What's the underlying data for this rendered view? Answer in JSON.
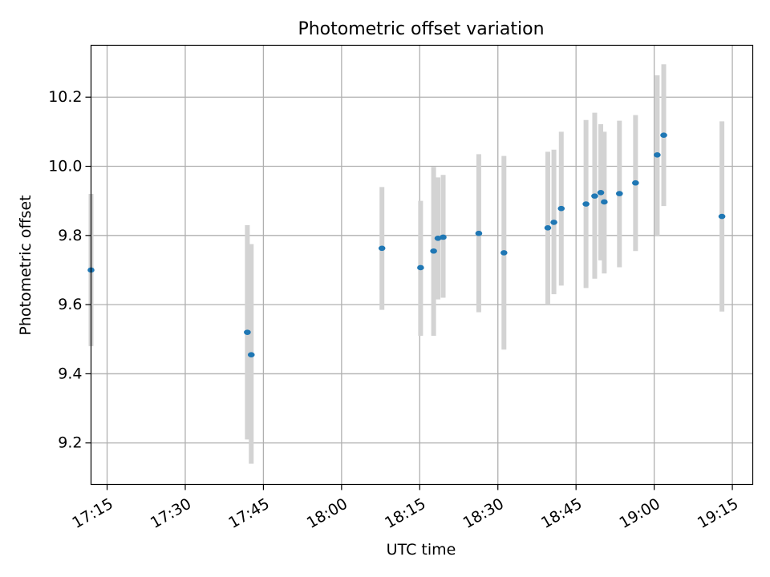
{
  "chart_data": {
    "type": "scatter",
    "title": "Photometric offset variation",
    "xlabel": "UTC time",
    "ylabel": "Photometric offset",
    "x_tick_labels": [
      "17:15",
      "17:30",
      "17:45",
      "18:00",
      "18:15",
      "18:30",
      "18:45",
      "19:00",
      "19:15"
    ],
    "y_tick_labels": [
      "9.2",
      "9.4",
      "9.6",
      "9.8",
      "10.0",
      "10.2"
    ],
    "x_ticks": [
      "17:15",
      "17:30",
      "17:45",
      "18:00",
      "18:15",
      "18:30",
      "18:45",
      "19:00",
      "19:15"
    ],
    "y_ticks": [
      9.2,
      9.4,
      9.6,
      9.8,
      10.0,
      10.2
    ],
    "xlim": [
      "17:11:55",
      "19:18:55"
    ],
    "ylim": [
      9.08,
      10.35
    ],
    "grid": true,
    "legend": "none",
    "marker_color": "#1f77b4",
    "errorbar_color": "#d3d3d3",
    "points": [
      {
        "x": "17:11:55",
        "y": 9.7,
        "ylow": 9.48,
        "yhigh": 9.92
      },
      {
        "x": "17:41:55",
        "y": 9.52,
        "ylow": 9.21,
        "yhigh": 9.83
      },
      {
        "x": "17:42:40",
        "y": 9.455,
        "ylow": 9.14,
        "yhigh": 9.775
      },
      {
        "x": "18:07:45",
        "y": 9.763,
        "ylow": 9.585,
        "yhigh": 9.94
      },
      {
        "x": "18:15:10",
        "y": 9.707,
        "ylow": 9.51,
        "yhigh": 9.9
      },
      {
        "x": "18:17:40",
        "y": 9.755,
        "ylow": 9.51,
        "yhigh": 9.998
      },
      {
        "x": "18:18:30",
        "y": 9.792,
        "ylow": 9.615,
        "yhigh": 9.968
      },
      {
        "x": "18:19:30",
        "y": 9.795,
        "ylow": 9.62,
        "yhigh": 9.975
      },
      {
        "x": "18:26:20",
        "y": 9.806,
        "ylow": 9.578,
        "yhigh": 10.035
      },
      {
        "x": "18:31:10",
        "y": 9.75,
        "ylow": 9.47,
        "yhigh": 10.03
      },
      {
        "x": "18:39:35",
        "y": 9.822,
        "ylow": 9.6,
        "yhigh": 10.042
      },
      {
        "x": "18:40:45",
        "y": 9.838,
        "ylow": 9.63,
        "yhigh": 10.048
      },
      {
        "x": "18:42:10",
        "y": 9.878,
        "ylow": 9.655,
        "yhigh": 10.1
      },
      {
        "x": "18:46:55",
        "y": 9.891,
        "ylow": 9.648,
        "yhigh": 10.134
      },
      {
        "x": "18:48:35",
        "y": 9.914,
        "ylow": 9.675,
        "yhigh": 10.155
      },
      {
        "x": "18:49:45",
        "y": 9.924,
        "ylow": 9.728,
        "yhigh": 10.122
      },
      {
        "x": "18:50:25",
        "y": 9.897,
        "ylow": 9.69,
        "yhigh": 10.1
      },
      {
        "x": "18:53:20",
        "y": 9.921,
        "ylow": 9.708,
        "yhigh": 10.132
      },
      {
        "x": "18:56:25",
        "y": 9.952,
        "ylow": 9.755,
        "yhigh": 10.148
      },
      {
        "x": "19:00:35",
        "y": 10.033,
        "ylow": 9.8,
        "yhigh": 10.263
      },
      {
        "x": "19:01:50",
        "y": 10.09,
        "ylow": 9.885,
        "yhigh": 10.295
      },
      {
        "x": "19:13:00",
        "y": 9.855,
        "ylow": 9.58,
        "yhigh": 10.13
      }
    ]
  }
}
